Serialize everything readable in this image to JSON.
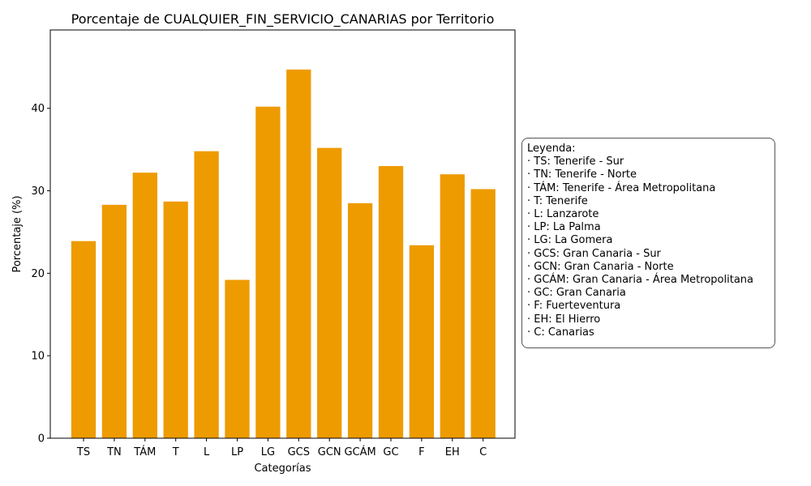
{
  "chart_data": {
    "type": "bar",
    "title": "Porcentaje de CUALQUIER_FIN_SERVICIO_CANARIAS por Territorio",
    "xlabel": "Categorías",
    "ylabel": "Porcentaje (%)",
    "ylim": [
      0,
      49.5
    ],
    "yticks": [
      0,
      10,
      20,
      30,
      40
    ],
    "categories": [
      "TS",
      "TN",
      "TÁM",
      "T",
      "L",
      "LP",
      "LG",
      "GCS",
      "GCN",
      "GCÁM",
      "GC",
      "F",
      "EH",
      "C"
    ],
    "values": [
      23.9,
      28.3,
      32.2,
      28.7,
      34.8,
      19.2,
      40.2,
      44.7,
      35.2,
      28.5,
      33.0,
      23.4,
      32.0,
      30.2
    ],
    "bar_color": "#ee9b00",
    "grid": false,
    "legend_placement": "right"
  },
  "legend": {
    "title": "Leyenda:",
    "entries": [
      "· TS: Tenerife - Sur",
      "· TN: Tenerife - Norte",
      "· TÁM: Tenerife - Área Metropolitana",
      "· T: Tenerife",
      "· L: Lanzarote",
      "· LP: La Palma",
      "· LG: La Gomera",
      "· GCS: Gran Canaria - Sur",
      "· GCN: Gran Canaria - Norte",
      "· GCÁM: Gran Canaria - Área Metropolitana",
      "· GC: Gran Canaria",
      "· F: Fuerteventura",
      "· EH: El Hierro",
      "· C: Canarias"
    ]
  }
}
